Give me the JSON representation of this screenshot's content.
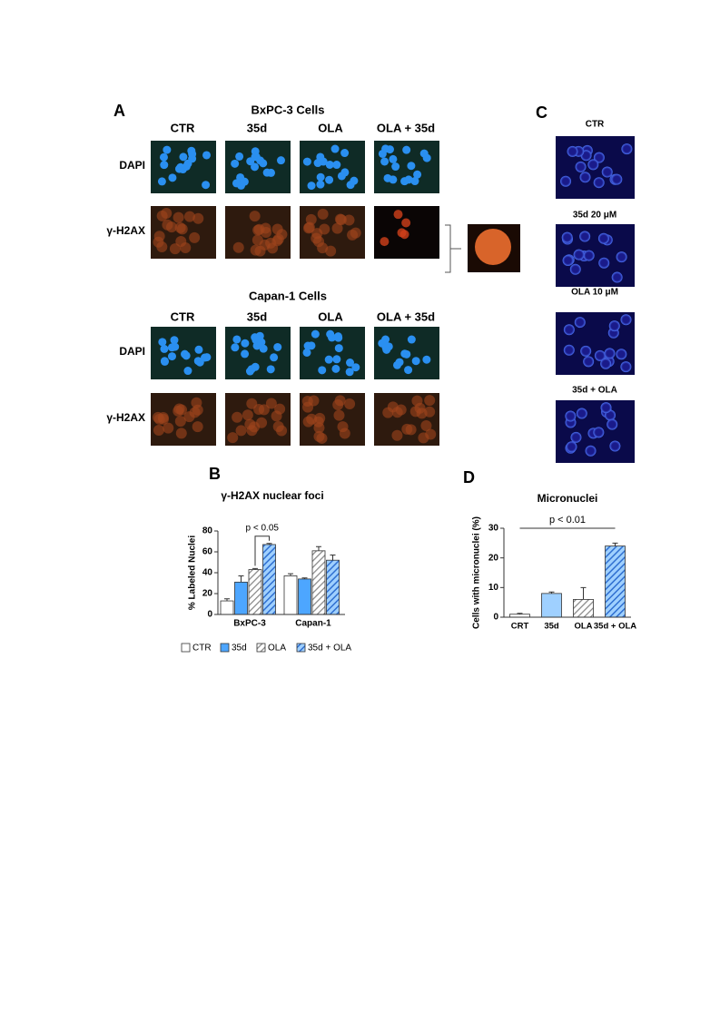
{
  "panel_a": {
    "label": "A",
    "groups": [
      {
        "title": "BxPC-3 Cells",
        "columns": [
          "CTR",
          "35d",
          "OLA",
          "OLA + 35d"
        ],
        "rows": [
          "DAPI",
          "γ-H2AX"
        ]
      },
      {
        "title": "Capan-1 Cells",
        "columns": [
          "CTR",
          "35d",
          "OLA",
          "OLA + 35d"
        ],
        "rows": [
          "DAPI",
          "γ-H2AX"
        ]
      }
    ]
  },
  "panel_c": {
    "label": "C",
    "images": [
      "CTR",
      "35d 20 μM",
      "OLA 10 μM",
      "35d + OLA"
    ]
  },
  "chart_data": [
    {
      "type": "bar",
      "panel": "B",
      "title": "γ-H2AX nuclear foci",
      "y_label": "% Labeled Nuclei",
      "categories": [
        "BxPC-3",
        "Capan-1"
      ],
      "series": [
        {
          "name": "CTR",
          "color": "#ffffff",
          "hatch": false,
          "values": [
            13,
            37
          ],
          "errors": [
            2,
            2
          ]
        },
        {
          "name": "35d",
          "color": "#4da6ff",
          "hatch": false,
          "values": [
            31,
            34
          ],
          "errors": [
            6,
            1
          ]
        },
        {
          "name": "OLA",
          "color": "#888888",
          "hatch": true,
          "values": [
            43,
            61
          ],
          "errors": [
            1,
            4
          ]
        },
        {
          "name": "35d + OLA",
          "color": "#2f6fd0",
          "hatch": true,
          "values": [
            67,
            52
          ],
          "errors": [
            1,
            5
          ]
        }
      ],
      "ylim": [
        0,
        80
      ],
      "yticks": [
        0,
        20,
        40,
        60,
        80
      ],
      "annotation": "p < 0.05",
      "legend": "bottom"
    },
    {
      "type": "bar",
      "panel": "D",
      "title": "Micronuclei",
      "y_label": "Cells with micronuclei (%)",
      "categories": [
        "CRT",
        "35d",
        "OLA",
        "35d + OLA"
      ],
      "values": [
        1,
        8,
        6,
        24
      ],
      "errors": [
        0.3,
        0.5,
        4,
        1
      ],
      "colors": [
        "#ffffff",
        "#9fd0ff",
        "#888888",
        "#2f6fd0"
      ],
      "hatches": [
        false,
        false,
        true,
        true
      ],
      "ylim": [
        0,
        30
      ],
      "yticks": [
        0,
        10,
        20,
        30
      ],
      "annotation": "p < 0.01"
    }
  ]
}
